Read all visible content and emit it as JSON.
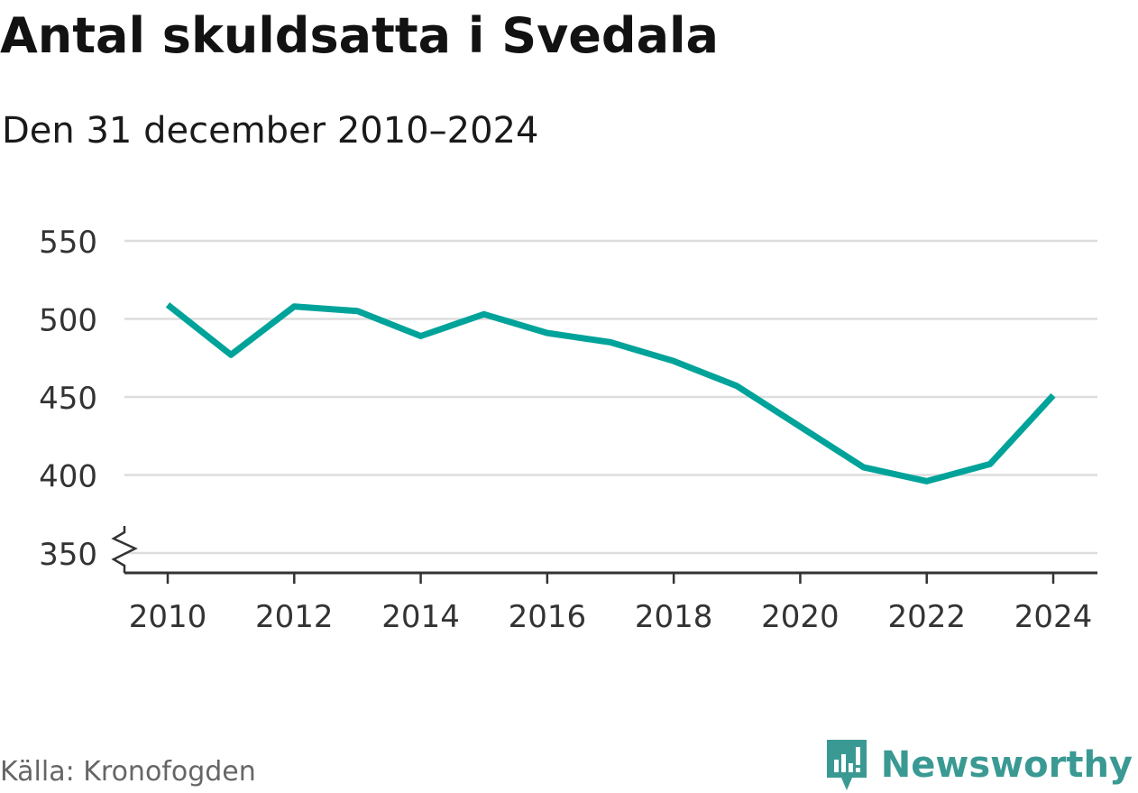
{
  "title": "Antal skuldsatta i Svedala",
  "subtitle": "Den 31 december 2010–2024",
  "source": "Källa: Kronofogden",
  "brand": "Newsworthy",
  "colors": {
    "line": "#00a39a",
    "grid": "#dddddd",
    "axis": "#333333",
    "text": "#333333",
    "brand": "#3a9a93"
  },
  "chart_data": {
    "type": "line",
    "x": [
      2010,
      2011,
      2012,
      2013,
      2014,
      2015,
      2016,
      2017,
      2018,
      2019,
      2020,
      2021,
      2022,
      2023,
      2024
    ],
    "series": [
      {
        "values": [
          509,
          477,
          508,
          505,
          489,
          503,
          491,
          485,
          473,
          457,
          431,
          405,
          396,
          407,
          451
        ]
      }
    ],
    "yticks": [
      350,
      400,
      450,
      500,
      550
    ],
    "xticks": [
      2010,
      2012,
      2014,
      2016,
      2018,
      2020,
      2022,
      2024
    ],
    "ylim": [
      350,
      550
    ],
    "xlim": [
      2010,
      2024
    ],
    "grid": true,
    "axis_break": true,
    "xlabel": "",
    "ylabel": ""
  }
}
